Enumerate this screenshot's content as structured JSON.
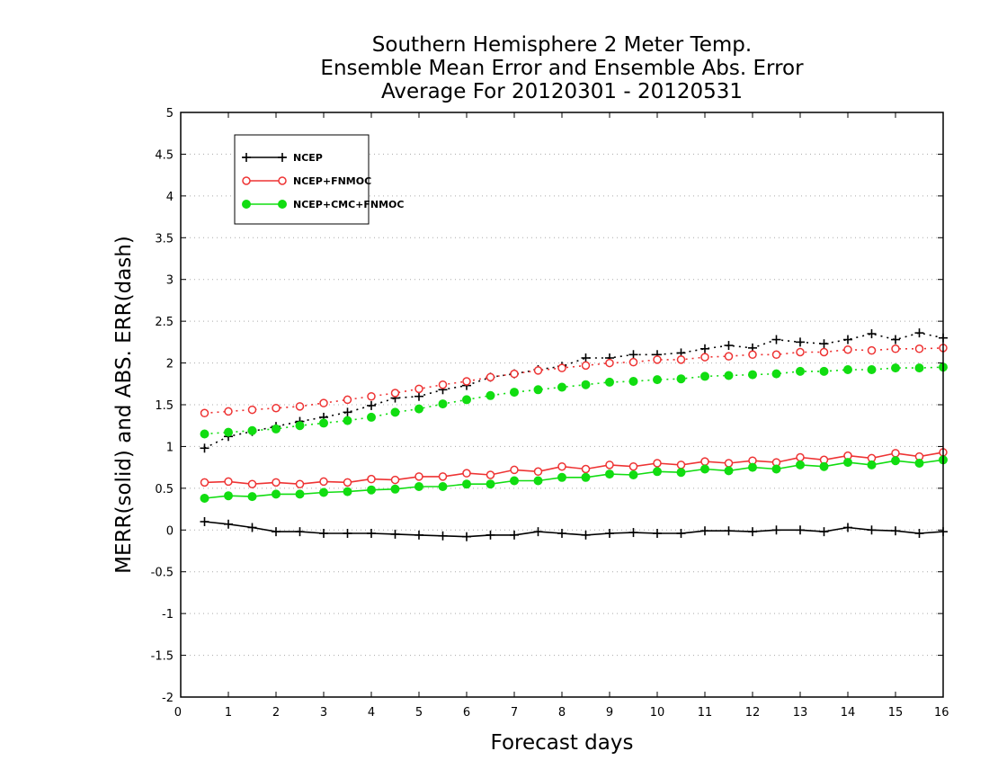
{
  "chart_data": {
    "type": "line",
    "title_lines": [
      "Southern Hemisphere 2 Meter Temp.",
      "Ensemble Mean Error and Ensemble Abs. Error",
      "Average For 20120301 - 20120531"
    ],
    "xlabel": "Forecast days",
    "ylabel": "MERR(solid) and ABS. ERR(dash)",
    "xlim": [
      0,
      16
    ],
    "ylim": [
      -2,
      5
    ],
    "x_ticks": [
      0,
      1,
      2,
      3,
      4,
      5,
      6,
      7,
      8,
      9,
      10,
      11,
      12,
      13,
      14,
      15,
      16
    ],
    "y_ticks": [
      -2,
      -1.5,
      -1,
      -0.5,
      0,
      0.5,
      1,
      1.5,
      2,
      2.5,
      3,
      3.5,
      4,
      4.5,
      5
    ],
    "y_tick_labels": [
      "-2",
      "-1.5",
      "-1",
      "-0.5",
      "0",
      "0.5",
      "1",
      "1.5",
      "2",
      "2.5",
      "3",
      "3.5",
      "4",
      "4.5",
      "5"
    ],
    "grid": "horizontal dotted",
    "legend_position": "top-left",
    "x": [
      0.5,
      1,
      1.5,
      2,
      2.5,
      3,
      3.5,
      4,
      4.5,
      5,
      5.5,
      6,
      6.5,
      7,
      7.5,
      8,
      8.5,
      9,
      9.5,
      10,
      10.5,
      11,
      11.5,
      12,
      12.5,
      13,
      13.5,
      14,
      14.5,
      15,
      15.5,
      16
    ],
    "series": [
      {
        "name": "NCEP",
        "color": "#000000",
        "marker": "plus",
        "merr": [
          0.1,
          0.07,
          0.03,
          -0.02,
          -0.02,
          -0.04,
          -0.04,
          -0.04,
          -0.05,
          -0.06,
          -0.07,
          -0.08,
          -0.06,
          -0.06,
          -0.02,
          -0.04,
          -0.06,
          -0.04,
          -0.03,
          -0.04,
          -0.04,
          -0.01,
          -0.01,
          -0.02,
          0.0,
          0.0,
          -0.02,
          0.03,
          0.0,
          -0.01,
          -0.04,
          -0.02
        ],
        "abs_err": [
          0.98,
          1.12,
          1.18,
          1.24,
          1.3,
          1.35,
          1.41,
          1.49,
          1.58,
          1.6,
          1.68,
          1.73,
          1.83,
          1.87,
          1.92,
          1.96,
          2.06,
          2.06,
          2.1,
          2.1,
          2.12,
          2.17,
          2.21,
          2.18,
          2.28,
          2.25,
          2.23,
          2.28,
          2.35,
          2.28,
          2.36,
          2.3
        ]
      },
      {
        "name": "NCEP+FNMOC",
        "color": "#ee3333",
        "marker": "open-circle",
        "merr": [
          0.57,
          0.58,
          0.55,
          0.57,
          0.55,
          0.58,
          0.57,
          0.61,
          0.6,
          0.64,
          0.64,
          0.68,
          0.66,
          0.72,
          0.7,
          0.76,
          0.73,
          0.78,
          0.76,
          0.8,
          0.78,
          0.82,
          0.8,
          0.83,
          0.81,
          0.87,
          0.84,
          0.89,
          0.86,
          0.92,
          0.88,
          0.93
        ],
        "abs_err": [
          1.4,
          1.42,
          1.44,
          1.46,
          1.48,
          1.52,
          1.56,
          1.6,
          1.64,
          1.69,
          1.74,
          1.78,
          1.83,
          1.87,
          1.91,
          1.94,
          1.97,
          2.0,
          2.01,
          2.04,
          2.04,
          2.07,
          2.08,
          2.1,
          2.1,
          2.13,
          2.13,
          2.16,
          2.15,
          2.17,
          2.17,
          2.18
        ]
      },
      {
        "name": "NCEP+CMC+FNMOC",
        "color": "#11dd11",
        "marker": "filled-circle",
        "merr": [
          0.38,
          0.41,
          0.4,
          0.43,
          0.43,
          0.45,
          0.46,
          0.48,
          0.49,
          0.52,
          0.52,
          0.55,
          0.55,
          0.59,
          0.59,
          0.63,
          0.63,
          0.67,
          0.66,
          0.7,
          0.69,
          0.73,
          0.71,
          0.75,
          0.73,
          0.78,
          0.76,
          0.81,
          0.78,
          0.83,
          0.8,
          0.84
        ],
        "abs_err": [
          1.15,
          1.17,
          1.19,
          1.21,
          1.25,
          1.28,
          1.31,
          1.35,
          1.41,
          1.45,
          1.51,
          1.56,
          1.61,
          1.65,
          1.68,
          1.71,
          1.74,
          1.77,
          1.78,
          1.8,
          1.81,
          1.84,
          1.85,
          1.86,
          1.87,
          1.9,
          1.9,
          1.92,
          1.92,
          1.94,
          1.94,
          1.95
        ]
      }
    ]
  }
}
